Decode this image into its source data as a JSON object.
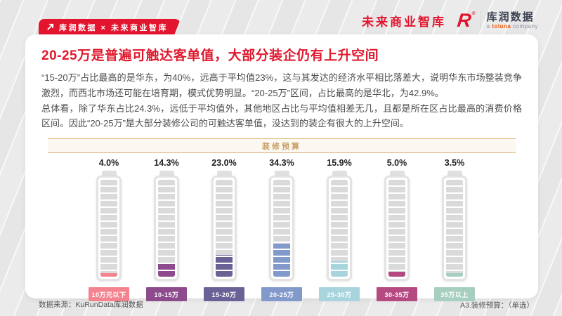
{
  "page": {
    "badge": {
      "text": "库润数据 × 未来商业智库"
    },
    "header_right": {
      "brand": "未来商业智库",
      "logo_mark": "R",
      "logo_reg": "®",
      "logo_name": "库润数据",
      "logo_sub_parts": [
        "a ",
        "toluna",
        " company"
      ]
    },
    "title": "20-25万是普遍可触达客单值，大部分装企仍有上升空间",
    "paragraphs": [
      "“15-20万”占比最高的是华东，为40%，远高于平均值23%，这与其发达的经济水平相比落差大，说明华东市场整装竞争激烈，而西北市场还可能在培育期，模式优势明显。“20-25万”区间，占比最高的是华北，为42.9%。",
      "总体看，除了华东占比24.3%，远低于平均值外，其他地区占比与平均值相差无几，且都是所在区占比最高的消费价格区间。因此“20-25万”是大部分装修公司的可触达客单值，没达到的装企有很大的上升空间。"
    ],
    "footer": {
      "source": "数据来源：KuRunData库润数据",
      "note": "A3.装修预算：（单选）"
    }
  },
  "chart_data": {
    "type": "bar",
    "style": "battery-gauge",
    "title": "装修预算",
    "categories": [
      "10万元以下",
      "10-15万",
      "15-20万",
      "20-25万",
      "25-30万",
      "30-35万",
      "35万以上"
    ],
    "values": [
      4.0,
      14.3,
      23.0,
      34.3,
      15.9,
      5.0,
      3.5
    ],
    "value_labels": [
      "4.0%",
      "14.3%",
      "23.0%",
      "34.3%",
      "15.9%",
      "5.0%",
      "3.5%"
    ],
    "colors": [
      "#f5838f",
      "#8d4a8c",
      "#6a6196",
      "#8299cb",
      "#a8d4de",
      "#b44a81",
      "#a6cfc0"
    ],
    "unit": "%",
    "ylim": [
      0,
      100
    ],
    "legend": "none",
    "grid": "off"
  },
  "colors": {
    "accent_red": "#e3142e",
    "gold": "#c8a066",
    "body_text": "#4d4d4d"
  }
}
